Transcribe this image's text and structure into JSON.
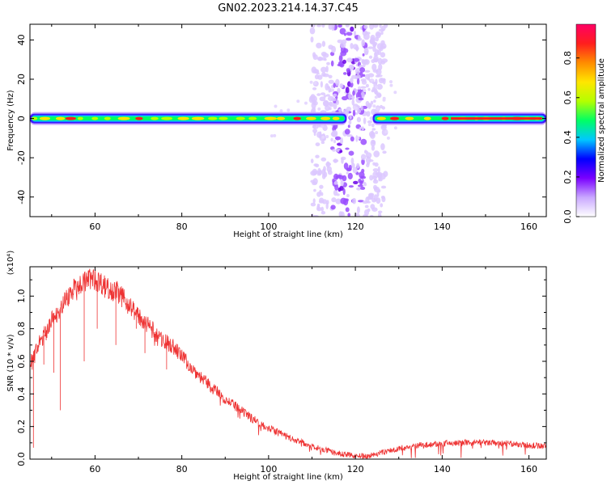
{
  "title": "GN02.2023.214.14.37.C45",
  "chart_data": [
    {
      "type": "heatmap",
      "xlabel": "Height of straight line (km)",
      "ylabel": "Frequency (Hz)",
      "xlim": [
        45,
        164
      ],
      "ylim": [
        -50,
        48
      ],
      "x_ticks": [
        60,
        80,
        100,
        120,
        140,
        160
      ],
      "y_ticks": [
        -40,
        -20,
        0,
        20,
        40
      ],
      "colorbar": {
        "label": "Normalized spectral amplitude",
        "ticks": [
          0.0,
          0.2,
          0.4,
          0.6,
          0.8
        ],
        "range": [
          0,
          0.97
        ],
        "colormap": [
          "#ffffff",
          "#c9a8ff",
          "#7a00ff",
          "#0000ff",
          "#00c8ff",
          "#00ff64",
          "#b4ff00",
          "#ffe600",
          "#ff8c00",
          "#ff1e1e",
          "#ff0064"
        ]
      },
      "features": {
        "band_center_hz": 0,
        "band_range_km": [
          45,
          164
        ],
        "band_gap_km": [
          118,
          124
        ],
        "broadband_region_km": [
          110,
          127
        ]
      }
    },
    {
      "type": "line",
      "xlabel": "Height of straight line (km)",
      "ylabel": "SNR (10 * v/v)",
      "y_multiplier": "(x10⁴)",
      "xlim": [
        45,
        164
      ],
      "ylim": [
        0,
        1.18
      ],
      "x_ticks": [
        60,
        80,
        100,
        120,
        140,
        160
      ],
      "y_ticks": [
        0.0,
        0.2,
        0.4,
        0.6,
        0.8,
        1.0
      ],
      "color": "#ee3333",
      "series": [
        {
          "x": [
            45,
            47,
            50,
            53,
            55,
            57,
            59,
            61,
            63,
            65,
            67,
            70,
            73,
            75,
            78,
            80,
            83,
            86,
            90,
            95,
            100,
            105,
            110,
            115,
            120,
            123,
            126,
            130,
            135,
            140,
            145,
            150,
            155,
            160,
            164
          ],
          "values": [
            0.58,
            0.7,
            0.85,
            0.97,
            1.04,
            1.08,
            1.11,
            1.09,
            1.05,
            1.03,
            0.97,
            0.88,
            0.8,
            0.74,
            0.69,
            0.63,
            0.54,
            0.46,
            0.37,
            0.27,
            0.19,
            0.13,
            0.08,
            0.04,
            0.02,
            0.02,
            0.04,
            0.065,
            0.085,
            0.095,
            0.1,
            0.1,
            0.095,
            0.085,
            0.08
          ]
        }
      ],
      "dips": [
        {
          "x": 45.8,
          "y": 0.07
        },
        {
          "x": 48.2,
          "y": 0.58
        },
        {
          "x": 50.5,
          "y": 0.53
        },
        {
          "x": 52.0,
          "y": 0.3
        },
        {
          "x": 57.5,
          "y": 0.6
        },
        {
          "x": 60.5,
          "y": 0.8
        },
        {
          "x": 64.8,
          "y": 0.7
        },
        {
          "x": 69.5,
          "y": 0.8
        },
        {
          "x": 71.5,
          "y": 0.65
        },
        {
          "x": 76.5,
          "y": 0.55
        }
      ]
    }
  ]
}
